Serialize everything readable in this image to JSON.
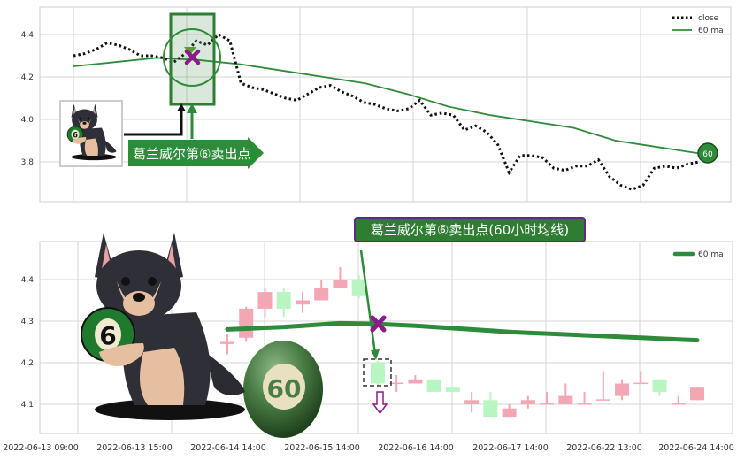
{
  "chart_data": [
    {
      "type": "line",
      "title": "",
      "yticks": [
        "4.4",
        "4.2",
        "4.0",
        "3.8"
      ],
      "ylim": [
        3.62,
        4.53
      ],
      "grid": true,
      "legend_placement": "top-right",
      "series": [
        {
          "name": "close",
          "style": "dotted",
          "color": "#111111",
          "values": [
            4.3,
            4.31,
            4.33,
            4.36,
            4.35,
            4.33,
            4.3,
            4.3,
            4.29,
            4.27,
            4.31,
            4.37,
            4.35,
            4.4,
            4.37,
            4.17,
            4.15,
            4.14,
            4.12,
            4.1,
            4.09,
            4.12,
            4.15,
            4.16,
            4.13,
            4.11,
            4.08,
            4.07,
            4.05,
            4.04,
            4.05,
            4.09,
            4.02,
            4.03,
            4.02,
            3.95,
            3.97,
            3.94,
            3.88,
            3.75,
            3.83,
            3.83,
            3.82,
            3.77,
            3.76,
            3.78,
            3.78,
            3.81,
            3.73,
            3.69,
            3.67,
            3.69,
            3.77,
            3.78,
            3.77,
            3.79,
            3.8
          ]
        },
        {
          "name": "60 ma",
          "style": "solid",
          "color": "#2e8b3a",
          "values": [
            4.25,
            4.27,
            4.29,
            4.28,
            4.26,
            4.23,
            4.2,
            4.17,
            4.12,
            4.06,
            4.02,
            3.99,
            3.96,
            3.9,
            3.87,
            3.84
          ]
        }
      ],
      "annotations": {
        "sell_label": "葛兰威尔第⑥卖出点",
        "badge": "60"
      }
    },
    {
      "type": "candlestick",
      "title": "葛兰威尔第⑥卖出点(60小时均线)",
      "yticks": [
        "4.4",
        "4.3",
        "4.2",
        "4.1"
      ],
      "ylim": [
        4.01,
        4.49
      ],
      "xticks": [
        "2022-06-13 09:00",
        "2022-06-13 15:00",
        "2022-06-14 14:00",
        "2022-06-15 14:00",
        "2022-06-16 14:00",
        "2022-06-17 14:00",
        "2022-06-22 13:00",
        "2022-06-24 14:00"
      ],
      "grid": true,
      "legend_placement": "top-right",
      "up_color": "#f4a6b4",
      "down_color": "#b8f5c0",
      "candles": [
        {
          "o": 4.245,
          "c": 4.25,
          "h": 4.27,
          "l": 4.22
        },
        {
          "o": 4.26,
          "c": 4.33,
          "h": 4.335,
          "l": 4.25
        },
        {
          "o": 4.33,
          "c": 4.37,
          "h": 4.38,
          "l": 4.31
        },
        {
          "o": 4.37,
          "c": 4.33,
          "h": 4.38,
          "l": 4.31
        },
        {
          "o": 4.34,
          "c": 4.35,
          "h": 4.37,
          "l": 4.32
        },
        {
          "o": 4.35,
          "c": 4.38,
          "h": 4.4,
          "l": 4.35
        },
        {
          "o": 4.38,
          "c": 4.4,
          "h": 4.43,
          "l": 4.38
        },
        {
          "o": 4.4,
          "c": 4.36,
          "h": 4.41,
          "l": 4.355
        },
        {
          "o": 4.2,
          "c": 4.15,
          "h": 4.205,
          "l": 4.145
        },
        {
          "o": 4.15,
          "c": 4.152,
          "h": 4.17,
          "l": 4.13
        },
        {
          "o": 4.15,
          "c": 4.16,
          "h": 4.17,
          "l": 4.15
        },
        {
          "o": 4.16,
          "c": 4.13,
          "h": 4.16,
          "l": 4.13
        },
        {
          "o": 4.14,
          "c": 4.13,
          "h": 4.14,
          "l": 4.13
        },
        {
          "o": 4.1,
          "c": 4.11,
          "h": 4.13,
          "l": 4.08
        },
        {
          "o": 4.11,
          "c": 4.07,
          "h": 4.13,
          "l": 4.07
        },
        {
          "o": 4.07,
          "c": 4.09,
          "h": 4.1,
          "l": 4.07
        },
        {
          "o": 4.1,
          "c": 4.11,
          "h": 4.12,
          "l": 4.09
        },
        {
          "o": 4.1,
          "c": 4.102,
          "h": 4.13,
          "l": 4.1
        },
        {
          "o": 4.1,
          "c": 4.12,
          "h": 4.15,
          "l": 4.1
        },
        {
          "o": 4.1,
          "c": 4.102,
          "h": 4.13,
          "l": 4.1
        },
        {
          "o": 4.11,
          "c": 4.112,
          "h": 4.18,
          "l": 4.11
        },
        {
          "o": 4.12,
          "c": 4.15,
          "h": 4.16,
          "l": 4.11
        },
        {
          "o": 4.15,
          "c": 4.152,
          "h": 4.18,
          "l": 4.15
        },
        {
          "o": 4.16,
          "c": 4.13,
          "h": 4.16,
          "l": 4.12
        },
        {
          "o": 4.1,
          "c": 4.102,
          "h": 4.12,
          "l": 4.1
        },
        {
          "o": 4.11,
          "c": 4.14,
          "h": 4.14,
          "l": 4.11
        }
      ],
      "series": [
        {
          "name": "60 ma",
          "color": "#2e8b3a",
          "values": [
            4.28,
            4.282,
            4.284,
            4.286,
            4.289,
            4.292,
            4.295,
            4.294,
            4.293,
            4.291,
            4.289,
            4.286,
            4.283,
            4.28,
            4.277,
            4.274,
            4.272,
            4.27,
            4.268,
            4.266,
            4.264,
            4.262,
            4.26,
            4.258,
            4.256,
            4.254
          ]
        }
      ],
      "annotations": {
        "ball_label": "60",
        "dog_ball_label": "6"
      }
    }
  ]
}
